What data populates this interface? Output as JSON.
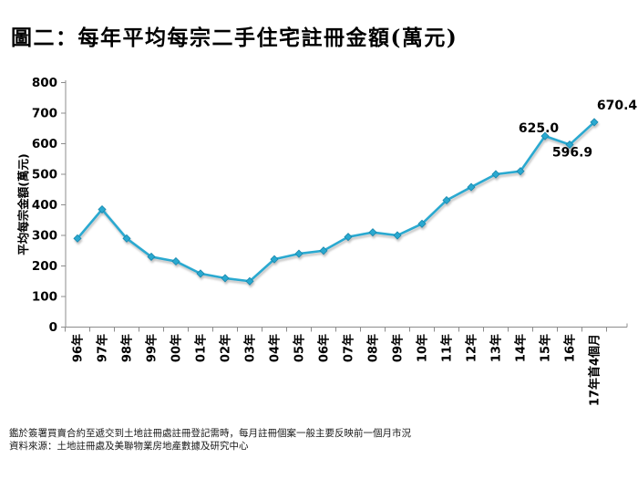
{
  "title": "圖二：每年平均每宗二手住宅註冊金額(萬元)",
  "footnotes": {
    "note": "鑑於簽署買賣合約至遞交到土地註冊處註冊登記需時，每月註冊個案一般主要反映前一個月市況",
    "source": "資料來源：土地註冊處及美聯物業房地產數據及研究中心"
  },
  "colors": {
    "line": "#29A9D0",
    "marker": "#29A9D0",
    "marker_edge": "#1987AC",
    "axis": "#8c8c8c",
    "text": "#000000"
  },
  "chart_data": {
    "type": "line",
    "title": "圖二：每年平均每宗二手住宅註冊金額(萬元)",
    "xlabel": "",
    "ylabel": "平均每宗金額(萬元)",
    "ylim": [
      0,
      800
    ],
    "ytick_step": 100,
    "grid": false,
    "legend": false,
    "categories": [
      "96年",
      "97年",
      "98年",
      "99年",
      "00年",
      "01年",
      "02年",
      "03年",
      "04年",
      "05年",
      "06年",
      "07年",
      "08年",
      "09年",
      "10年",
      "11年",
      "12年",
      "13年",
      "14年",
      "15年",
      "16年",
      "17年首4個月"
    ],
    "values": [
      290,
      385,
      290,
      230,
      215,
      175,
      160,
      150,
      222,
      240,
      250,
      295,
      310,
      300,
      338,
      415,
      458,
      500,
      510,
      625.0,
      596.9,
      670.4
    ],
    "point_labels": [
      {
        "index": 19,
        "text": "625.0",
        "position": "above-left"
      },
      {
        "index": 20,
        "text": "596.9",
        "position": "below"
      },
      {
        "index": 21,
        "text": "670.4",
        "position": "above-right"
      }
    ]
  }
}
